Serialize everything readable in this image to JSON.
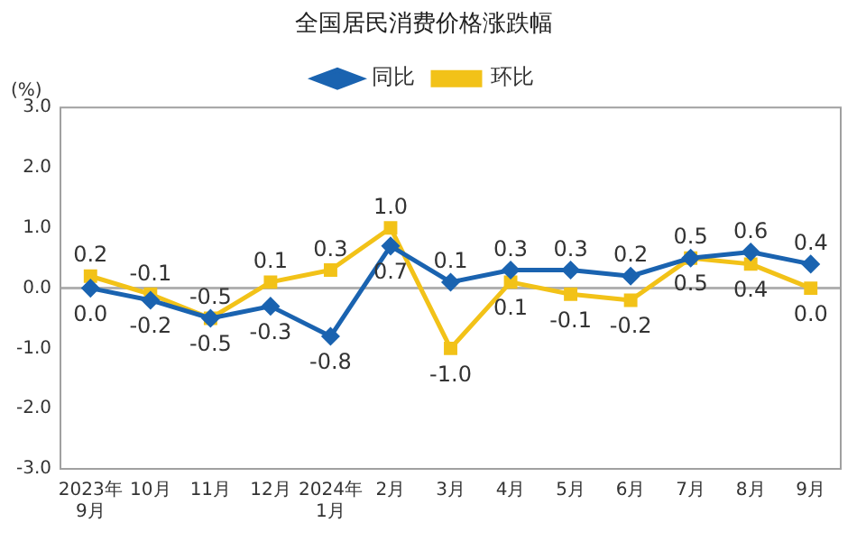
{
  "chart_data": {
    "type": "line",
    "title": "全国居民消费价格涨跌幅",
    "ylabel": "(%)",
    "categories": [
      "2023年\n9月",
      "10月",
      "11月",
      "12月",
      "2024年\n1月",
      "2月",
      "3月",
      "4月",
      "5月",
      "6月",
      "7月",
      "8月",
      "9月"
    ],
    "series": [
      {
        "name": "同比",
        "color": "#1a63b0",
        "marker": "diamond",
        "values": [
          0.0,
          -0.2,
          -0.5,
          -0.3,
          -0.8,
          0.7,
          0.1,
          0.3,
          0.3,
          0.2,
          0.5,
          0.6,
          0.4
        ],
        "value_labels": [
          "0.0",
          "-0.2",
          "-0.5",
          "-0.3",
          "-0.8",
          "0.7",
          "0.1",
          "0.3",
          "0.3",
          "0.2",
          "0.5",
          "0.6",
          "0.4"
        ]
      },
      {
        "name": "环比",
        "color": "#f2c218",
        "marker": "square",
        "values": [
          0.2,
          -0.1,
          -0.5,
          0.1,
          0.3,
          1.0,
          -1.0,
          0.1,
          -0.1,
          -0.2,
          0.5,
          0.4,
          0.0
        ],
        "value_labels": [
          "0.2",
          "-0.1",
          "-0.5",
          "0.1",
          "0.3",
          "1.0",
          "-1.0",
          "0.1",
          "-0.1",
          "-0.2",
          "0.5",
          "0.4",
          "0.0"
        ]
      }
    ],
    "ylim": [
      -3,
      3
    ],
    "yticks": [
      {
        "value": -3,
        "label": "-3.0"
      },
      {
        "value": -2,
        "label": "-2.0"
      },
      {
        "value": -1,
        "label": "-1.0"
      },
      {
        "value": 0,
        "label": "0.0"
      },
      {
        "value": 1,
        "label": "1.0"
      },
      {
        "value": 2,
        "label": "2.0"
      },
      {
        "value": 3,
        "label": "3.0"
      }
    ],
    "ref_lines": [
      {
        "axis": "y",
        "value": 0,
        "color": "#b0b0b0"
      }
    ],
    "grid": false,
    "legend": "top",
    "line_style": "solid"
  }
}
